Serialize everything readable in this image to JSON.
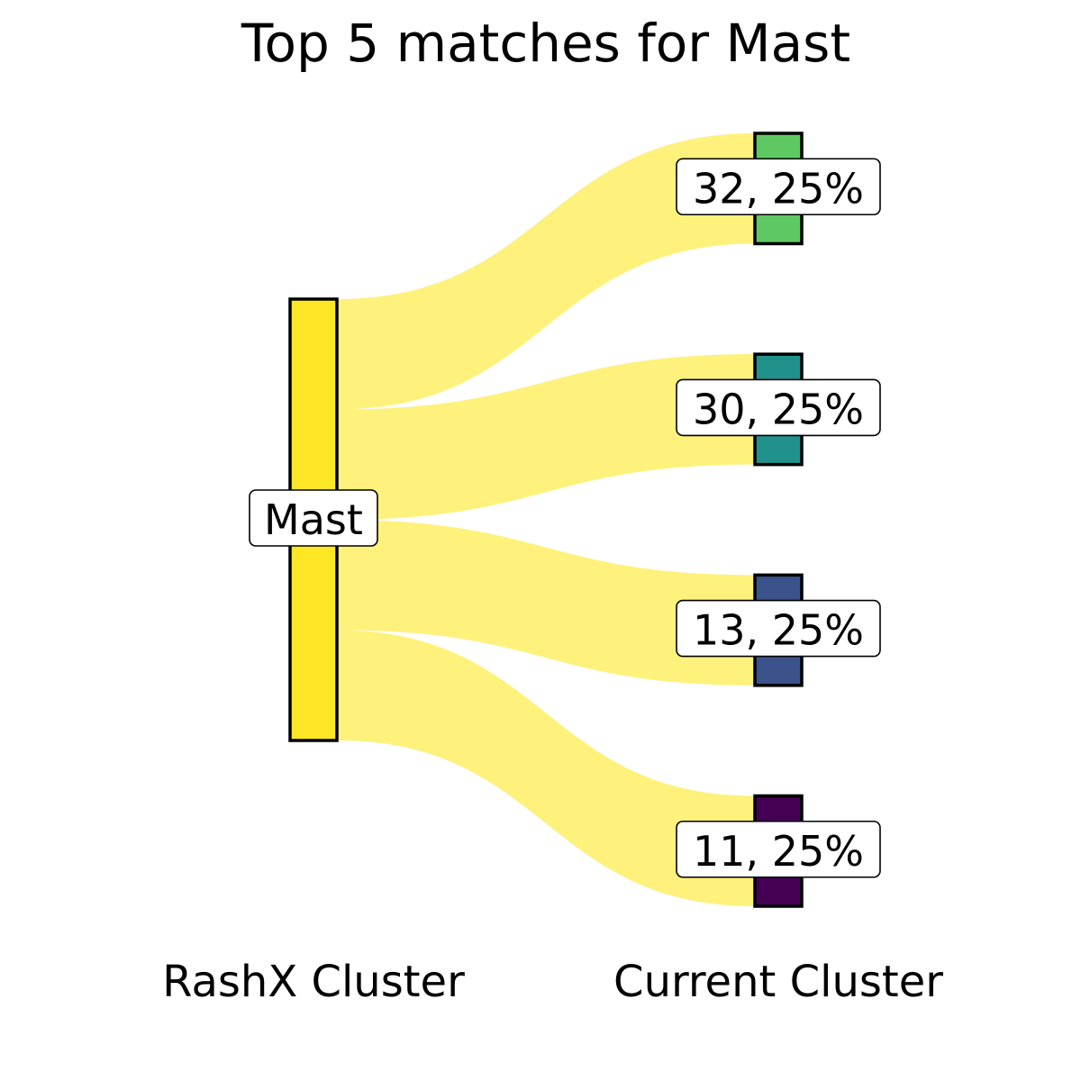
{
  "chart_data": {
    "type": "sankey",
    "title": "Top 5 matches for Mast",
    "left_axis_label": "RashX Cluster",
    "right_axis_label": "Current Cluster",
    "source": {
      "label": "Mast",
      "color": "#fde725"
    },
    "flow_color": "#fde725",
    "targets": [
      {
        "cluster": "32",
        "percent": "25%",
        "label": "32, 25%",
        "color": "#5ec962",
        "share": 0.25
      },
      {
        "cluster": "30",
        "percent": "25%",
        "label": "30, 25%",
        "color": "#21918c",
        "share": 0.25
      },
      {
        "cluster": "13",
        "percent": "25%",
        "label": "13, 25%",
        "color": "#3b528b",
        "share": 0.25
      },
      {
        "cluster": "11",
        "percent": "25%",
        "label": "11, 25%",
        "color": "#440154",
        "share": 0.25
      }
    ]
  }
}
